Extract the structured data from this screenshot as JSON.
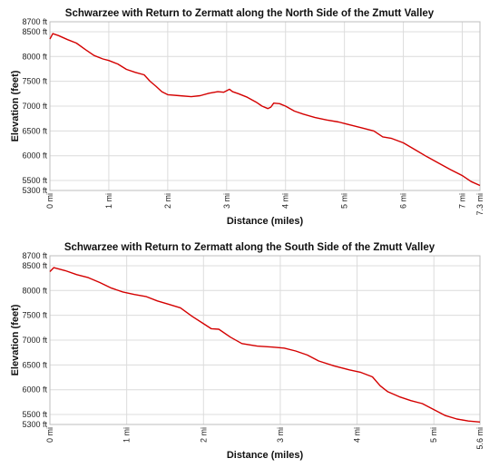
{
  "chart_data": [
    {
      "type": "line",
      "title": "Schwarzee with Return to Zermatt along the North Side of the Zmutt Valley",
      "xlabel": "Distance (miles)",
      "ylabel": "Elevation (feet)",
      "xlim": [
        0,
        7.3
      ],
      "ylim": [
        5300,
        8700
      ],
      "x_ticks": [
        0,
        1,
        2,
        3,
        4,
        5,
        6,
        7,
        7.3
      ],
      "x_tick_labels": [
        "0 mi",
        "1 mi",
        "2 mi",
        "3 mi",
        "4 mi",
        "5 mi",
        "6 mi",
        "7 mi",
        "7.3 mi"
      ],
      "y_ticks": [
        5300,
        5500,
        6000,
        6500,
        7000,
        7500,
        8000,
        8500,
        8700
      ],
      "y_tick_labels": [
        "5300 ft",
        "5500 ft",
        "6000 ft",
        "6500 ft",
        "7000 ft",
        "7500 ft",
        "8000 ft",
        "8500 ft",
        "8700 ft"
      ],
      "grid": true,
      "color": "#d40000",
      "series": [
        {
          "x": [
            0,
            0.05,
            0.15,
            0.3,
            0.45,
            0.6,
            0.75,
            0.9,
            1.0,
            1.15,
            1.3,
            1.45,
            1.6,
            1.7,
            1.8,
            1.9,
            2.0,
            2.2,
            2.4,
            2.55,
            2.7,
            2.85,
            2.95,
            3.05,
            3.1,
            3.2,
            3.35,
            3.5,
            3.6,
            3.7,
            3.75,
            3.8,
            3.9,
            4.0,
            4.15,
            4.3,
            4.5,
            4.7,
            4.9,
            5.1,
            5.3,
            5.5,
            5.65,
            5.8,
            6.0,
            6.2,
            6.4,
            6.6,
            6.8,
            7.0,
            7.15,
            7.3
          ],
          "y": [
            8350,
            8460,
            8420,
            8340,
            8270,
            8140,
            8020,
            7950,
            7920,
            7850,
            7740,
            7680,
            7630,
            7500,
            7400,
            7290,
            7230,
            7210,
            7190,
            7210,
            7260,
            7290,
            7280,
            7340,
            7290,
            7250,
            7180,
            7080,
            7000,
            6950,
            6980,
            7060,
            7050,
            7000,
            6900,
            6840,
            6770,
            6720,
            6680,
            6620,
            6560,
            6500,
            6380,
            6350,
            6260,
            6120,
            5980,
            5850,
            5720,
            5600,
            5480,
            5400
          ]
        }
      ]
    },
    {
      "type": "line",
      "title": "Schwarzee with Return to Zermatt along the South Side of the Zmutt Valley",
      "xlabel": "Distance (miles)",
      "ylabel": "Elevation (feet)",
      "xlim": [
        0,
        5.6
      ],
      "ylim": [
        5300,
        8700
      ],
      "x_ticks": [
        0,
        1,
        2,
        3,
        4,
        5,
        5.6
      ],
      "x_tick_labels": [
        "0 mi",
        "1 mi",
        "2 mi",
        "3 mi",
        "4 mi",
        "5 mi",
        "5.6 mi"
      ],
      "y_ticks": [
        5300,
        5500,
        6000,
        6500,
        7000,
        7500,
        8000,
        8500,
        8700
      ],
      "y_tick_labels": [
        "5300 ft",
        "5500 ft",
        "6000 ft",
        "6500 ft",
        "7000 ft",
        "7500 ft",
        "8000 ft",
        "8500 ft",
        "8700 ft"
      ],
      "grid": true,
      "color": "#d40000",
      "series": [
        {
          "x": [
            0,
            0.05,
            0.2,
            0.35,
            0.5,
            0.65,
            0.8,
            0.95,
            1.1,
            1.25,
            1.4,
            1.55,
            1.7,
            1.85,
            2.0,
            2.1,
            2.2,
            2.35,
            2.5,
            2.7,
            2.9,
            3.05,
            3.2,
            3.35,
            3.5,
            3.7,
            3.9,
            4.05,
            4.2,
            4.3,
            4.4,
            4.55,
            4.7,
            4.85,
            5.0,
            5.15,
            5.3,
            5.45,
            5.6
          ],
          "y": [
            8380,
            8460,
            8400,
            8320,
            8260,
            8160,
            8050,
            7970,
            7920,
            7880,
            7790,
            7720,
            7650,
            7480,
            7330,
            7230,
            7220,
            7060,
            6930,
            6880,
            6860,
            6840,
            6780,
            6700,
            6580,
            6480,
            6400,
            6350,
            6260,
            6080,
            5960,
            5860,
            5780,
            5720,
            5600,
            5480,
            5410,
            5370,
            5350
          ]
        }
      ]
    }
  ]
}
